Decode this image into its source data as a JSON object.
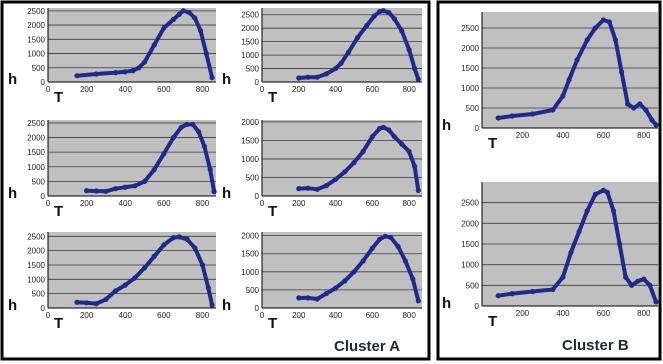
{
  "clusters": [
    {
      "label": "Cluster A"
    },
    {
      "label": "Cluster B"
    }
  ],
  "colors": {
    "plot_bg": "#c0c0c0",
    "series": "#1f2a8a",
    "grid": "#3a3a3a",
    "frame": "#000000"
  },
  "chart_data": [
    {
      "type": "scatter",
      "panel": "A1",
      "xlabel": "T",
      "ylabel": "h",
      "xticks": [
        0,
        200,
        400,
        600,
        800
      ],
      "yticks": [
        0,
        500,
        1000,
        1500,
        2000,
        2500
      ],
      "xlim": [
        0,
        870
      ],
      "ylim": [
        0,
        2600
      ],
      "grid": true,
      "series": [
        {
          "x": [
            150,
            250,
            350,
            400,
            440,
            470,
            500,
            550,
            600,
            650,
            680,
            700,
            730,
            760,
            790,
            820,
            850
          ],
          "y": [
            220,
            280,
            330,
            360,
            400,
            500,
            700,
            1300,
            1900,
            2200,
            2380,
            2500,
            2450,
            2250,
            1800,
            1000,
            150
          ]
        }
      ]
    },
    {
      "type": "scatter",
      "panel": "A2",
      "xlabel": "T",
      "ylabel": "h",
      "xticks": [
        0,
        200,
        400,
        600,
        800
      ],
      "yticks": [
        0,
        500,
        1000,
        1500,
        2000,
        2500
      ],
      "xlim": [
        0,
        870
      ],
      "ylim": [
        0,
        2750
      ],
      "grid": true,
      "series": [
        {
          "x": [
            200,
            250,
            300,
            350,
            400,
            430,
            470,
            520,
            570,
            610,
            640,
            660,
            690,
            720,
            760,
            800,
            830,
            850
          ],
          "y": [
            150,
            180,
            180,
            300,
            500,
            700,
            1100,
            1650,
            2100,
            2450,
            2620,
            2650,
            2580,
            2350,
            1900,
            1200,
            500,
            100
          ]
        }
      ]
    },
    {
      "type": "scatter",
      "panel": "A3",
      "xlabel": "T",
      "ylabel": "h",
      "xticks": [
        0,
        200,
        400,
        600,
        800
      ],
      "yticks": [
        0,
        500,
        1000,
        1500,
        2000,
        2500
      ],
      "xlim": [
        0,
        870
      ],
      "ylim": [
        0,
        2600
      ],
      "grid": true,
      "series": [
        {
          "x": [
            200,
            250,
            300,
            350,
            400,
            450,
            500,
            550,
            600,
            650,
            690,
            720,
            750,
            780,
            810,
            840,
            860
          ],
          "y": [
            180,
            170,
            160,
            250,
            300,
            350,
            500,
            900,
            1450,
            2000,
            2350,
            2450,
            2450,
            2200,
            1700,
            900,
            150
          ]
        }
      ]
    },
    {
      "type": "scatter",
      "panel": "A4",
      "xlabel": "T",
      "ylabel": "h",
      "xticks": [
        0,
        200,
        400,
        600,
        800
      ],
      "yticks": [
        0,
        500,
        1000,
        1500,
        2000
      ],
      "xlim": [
        0,
        870
      ],
      "ylim": [
        0,
        2050
      ],
      "grid": true,
      "series": [
        {
          "x": [
            200,
            250,
            300,
            350,
            400,
            450,
            500,
            550,
            600,
            640,
            660,
            690,
            720,
            760,
            800,
            830,
            850
          ],
          "y": [
            200,
            210,
            180,
            280,
            450,
            650,
            900,
            1200,
            1600,
            1820,
            1850,
            1780,
            1600,
            1400,
            1200,
            800,
            150
          ]
        }
      ]
    },
    {
      "type": "scatter",
      "panel": "A5",
      "xlabel": "T",
      "ylabel": "h",
      "xticks": [
        0,
        200,
        400,
        600,
        800
      ],
      "yticks": [
        0,
        500,
        1000,
        1500,
        2000,
        2500
      ],
      "xlim": [
        0,
        870
      ],
      "ylim": [
        0,
        2650
      ],
      "grid": true,
      "series": [
        {
          "x": [
            150,
            200,
            250,
            300,
            350,
            400,
            450,
            500,
            550,
            600,
            650,
            680,
            720,
            760,
            800,
            830,
            850
          ],
          "y": [
            200,
            180,
            150,
            300,
            600,
            800,
            1050,
            1400,
            1800,
            2200,
            2450,
            2480,
            2400,
            2100,
            1500,
            700,
            100
          ]
        }
      ]
    },
    {
      "type": "scatter",
      "panel": "A6",
      "xlabel": "T",
      "ylabel": "h",
      "xticks": [
        0,
        200,
        400,
        600,
        800
      ],
      "yticks": [
        0,
        500,
        1000,
        1500,
        2000
      ],
      "xlim": [
        0,
        870
      ],
      "ylim": [
        0,
        2100
      ],
      "grid": true,
      "series": [
        {
          "x": [
            200,
            250,
            300,
            350,
            400,
            450,
            500,
            550,
            600,
            640,
            670,
            700,
            740,
            780,
            820,
            850
          ],
          "y": [
            280,
            280,
            250,
            400,
            550,
            750,
            1000,
            1300,
            1650,
            1900,
            1980,
            1950,
            1700,
            1300,
            800,
            200
          ]
        }
      ]
    },
    {
      "type": "scatter",
      "panel": "B1",
      "xlabel": "T",
      "ylabel": "h",
      "xticks": [
        200,
        400,
        600,
        800
      ],
      "yticks": [
        0,
        500,
        1000,
        1500,
        2000,
        2500
      ],
      "xlim": [
        0,
        870
      ],
      "ylim": [
        0,
        2900
      ],
      "grid": true,
      "series": [
        {
          "x": [
            80,
            150,
            250,
            350,
            400,
            430,
            470,
            520,
            560,
            600,
            630,
            660,
            690,
            720,
            750,
            780,
            810,
            840,
            860
          ],
          "y": [
            250,
            300,
            350,
            450,
            800,
            1200,
            1700,
            2200,
            2500,
            2700,
            2650,
            2200,
            1400,
            600,
            500,
            600,
            450,
            200,
            80
          ]
        }
      ]
    },
    {
      "type": "scatter",
      "panel": "B2",
      "xlabel": "T",
      "ylabel": "h",
      "xticks": [
        200,
        400,
        600,
        800
      ],
      "yticks": [
        0,
        500,
        1000,
        1500,
        2000,
        2500
      ],
      "xlim": [
        0,
        870
      ],
      "ylim": [
        0,
        3000
      ],
      "grid": true,
      "series": [
        {
          "x": [
            80,
            150,
            250,
            350,
            400,
            440,
            480,
            520,
            560,
            600,
            620,
            650,
            680,
            710,
            740,
            770,
            800,
            830,
            860
          ],
          "y": [
            250,
            300,
            350,
            400,
            700,
            1300,
            1800,
            2300,
            2700,
            2800,
            2750,
            2300,
            1500,
            700,
            500,
            600,
            650,
            500,
            100
          ]
        }
      ]
    }
  ]
}
